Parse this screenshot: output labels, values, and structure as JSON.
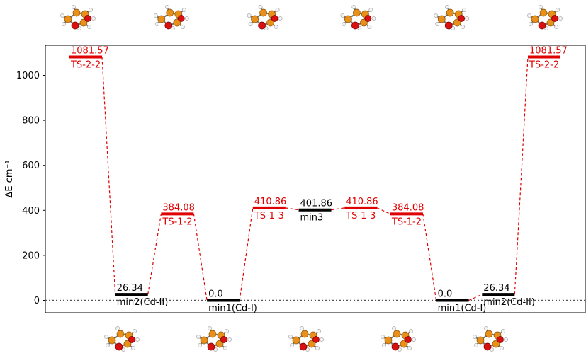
{
  "chart_data": {
    "type": "line",
    "title": "",
    "xlabel": "",
    "ylabel": "ΔE cm⁻¹",
    "ylim": [
      -55,
      1135
    ],
    "yticks": [
      0,
      200,
      400,
      600,
      800,
      1000
    ],
    "ytick_labels": [
      "0",
      "200",
      "400",
      "600",
      "800",
      "1000"
    ],
    "zero_line": true,
    "grid": false,
    "colors": {
      "minimum": "#000000",
      "transition_state": "#e00000"
    },
    "levels": [
      {
        "x": 1,
        "value": 1081.57,
        "value_label": "1081.57",
        "name": "TS-2-2",
        "kind": "transition_state"
      },
      {
        "x": 2,
        "value": 26.34,
        "value_label": "26.34",
        "name": "min2(Cd-II)",
        "kind": "minimum"
      },
      {
        "x": 3,
        "value": 384.08,
        "value_label": "384.08",
        "name": "TS-1-2",
        "kind": "transition_state"
      },
      {
        "x": 4,
        "value": 0.0,
        "value_label": "0.0",
        "name": "min1(Cd-I)",
        "kind": "minimum"
      },
      {
        "x": 5,
        "value": 410.86,
        "value_label": "410.86",
        "name": "TS-1-3",
        "kind": "transition_state"
      },
      {
        "x": 6,
        "value": 401.86,
        "value_label": "401.86",
        "name": "min3",
        "kind": "minimum"
      },
      {
        "x": 7,
        "value": 410.86,
        "value_label": "410.86",
        "name": "TS-1-3",
        "kind": "transition_state"
      },
      {
        "x": 8,
        "value": 384.08,
        "value_label": "384.08",
        "name": "TS-1-2",
        "kind": "transition_state"
      },
      {
        "x": 9,
        "value": 0.0,
        "value_label": "0.0",
        "name": "min1(Cd-I)",
        "kind": "minimum"
      },
      {
        "x": 10,
        "value": 26.34,
        "value_label": "26.34",
        "name": "min2(Cd-II)",
        "kind": "minimum"
      },
      {
        "x": 11,
        "value": 1081.57,
        "value_label": "1081.57",
        "name": "TS-2-2",
        "kind": "transition_state"
      }
    ],
    "molecule_images": {
      "top": 6,
      "bottom": 5,
      "depicts": "molecule-structure"
    }
  }
}
